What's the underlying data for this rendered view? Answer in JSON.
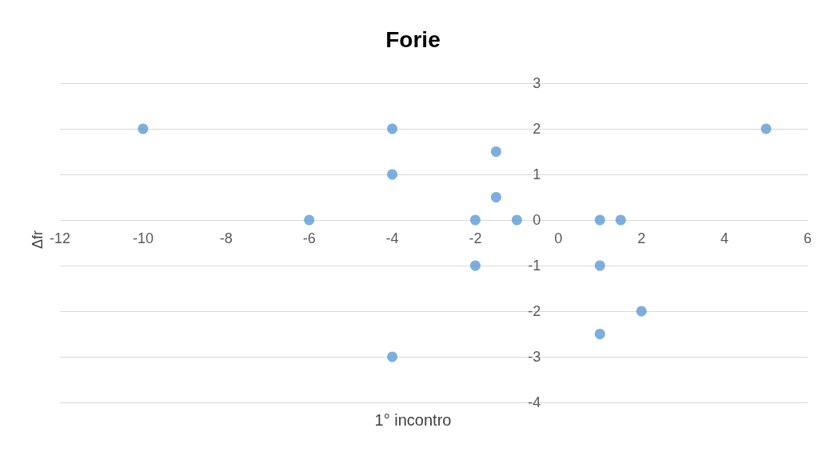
{
  "chart_data": {
    "type": "scatter",
    "title": "Forie",
    "xlabel": "1° incontro",
    "ylabel": "Δfr",
    "x": [
      -10,
      -4,
      5,
      -1.5,
      -4,
      -1.5,
      -6,
      -2,
      -1,
      1,
      1.5,
      -2,
      1,
      2,
      1,
      -4
    ],
    "values": [
      2,
      2,
      2,
      1.5,
      1,
      0.5,
      0,
      0,
      0,
      0,
      0,
      -1,
      -1,
      -2,
      -2.5,
      -3
    ],
    "color": "#5b9bd5",
    "marker": "circle",
    "xlim": [
      -12,
      6
    ],
    "xticks": [
      -12,
      -10,
      -8,
      -6,
      -4,
      -2,
      0,
      2,
      4,
      6
    ],
    "ylim": [
      -4,
      3
    ],
    "yticks": [
      -4,
      -3,
      -2,
      -1,
      0,
      1,
      2,
      3
    ],
    "grid": "y"
  }
}
